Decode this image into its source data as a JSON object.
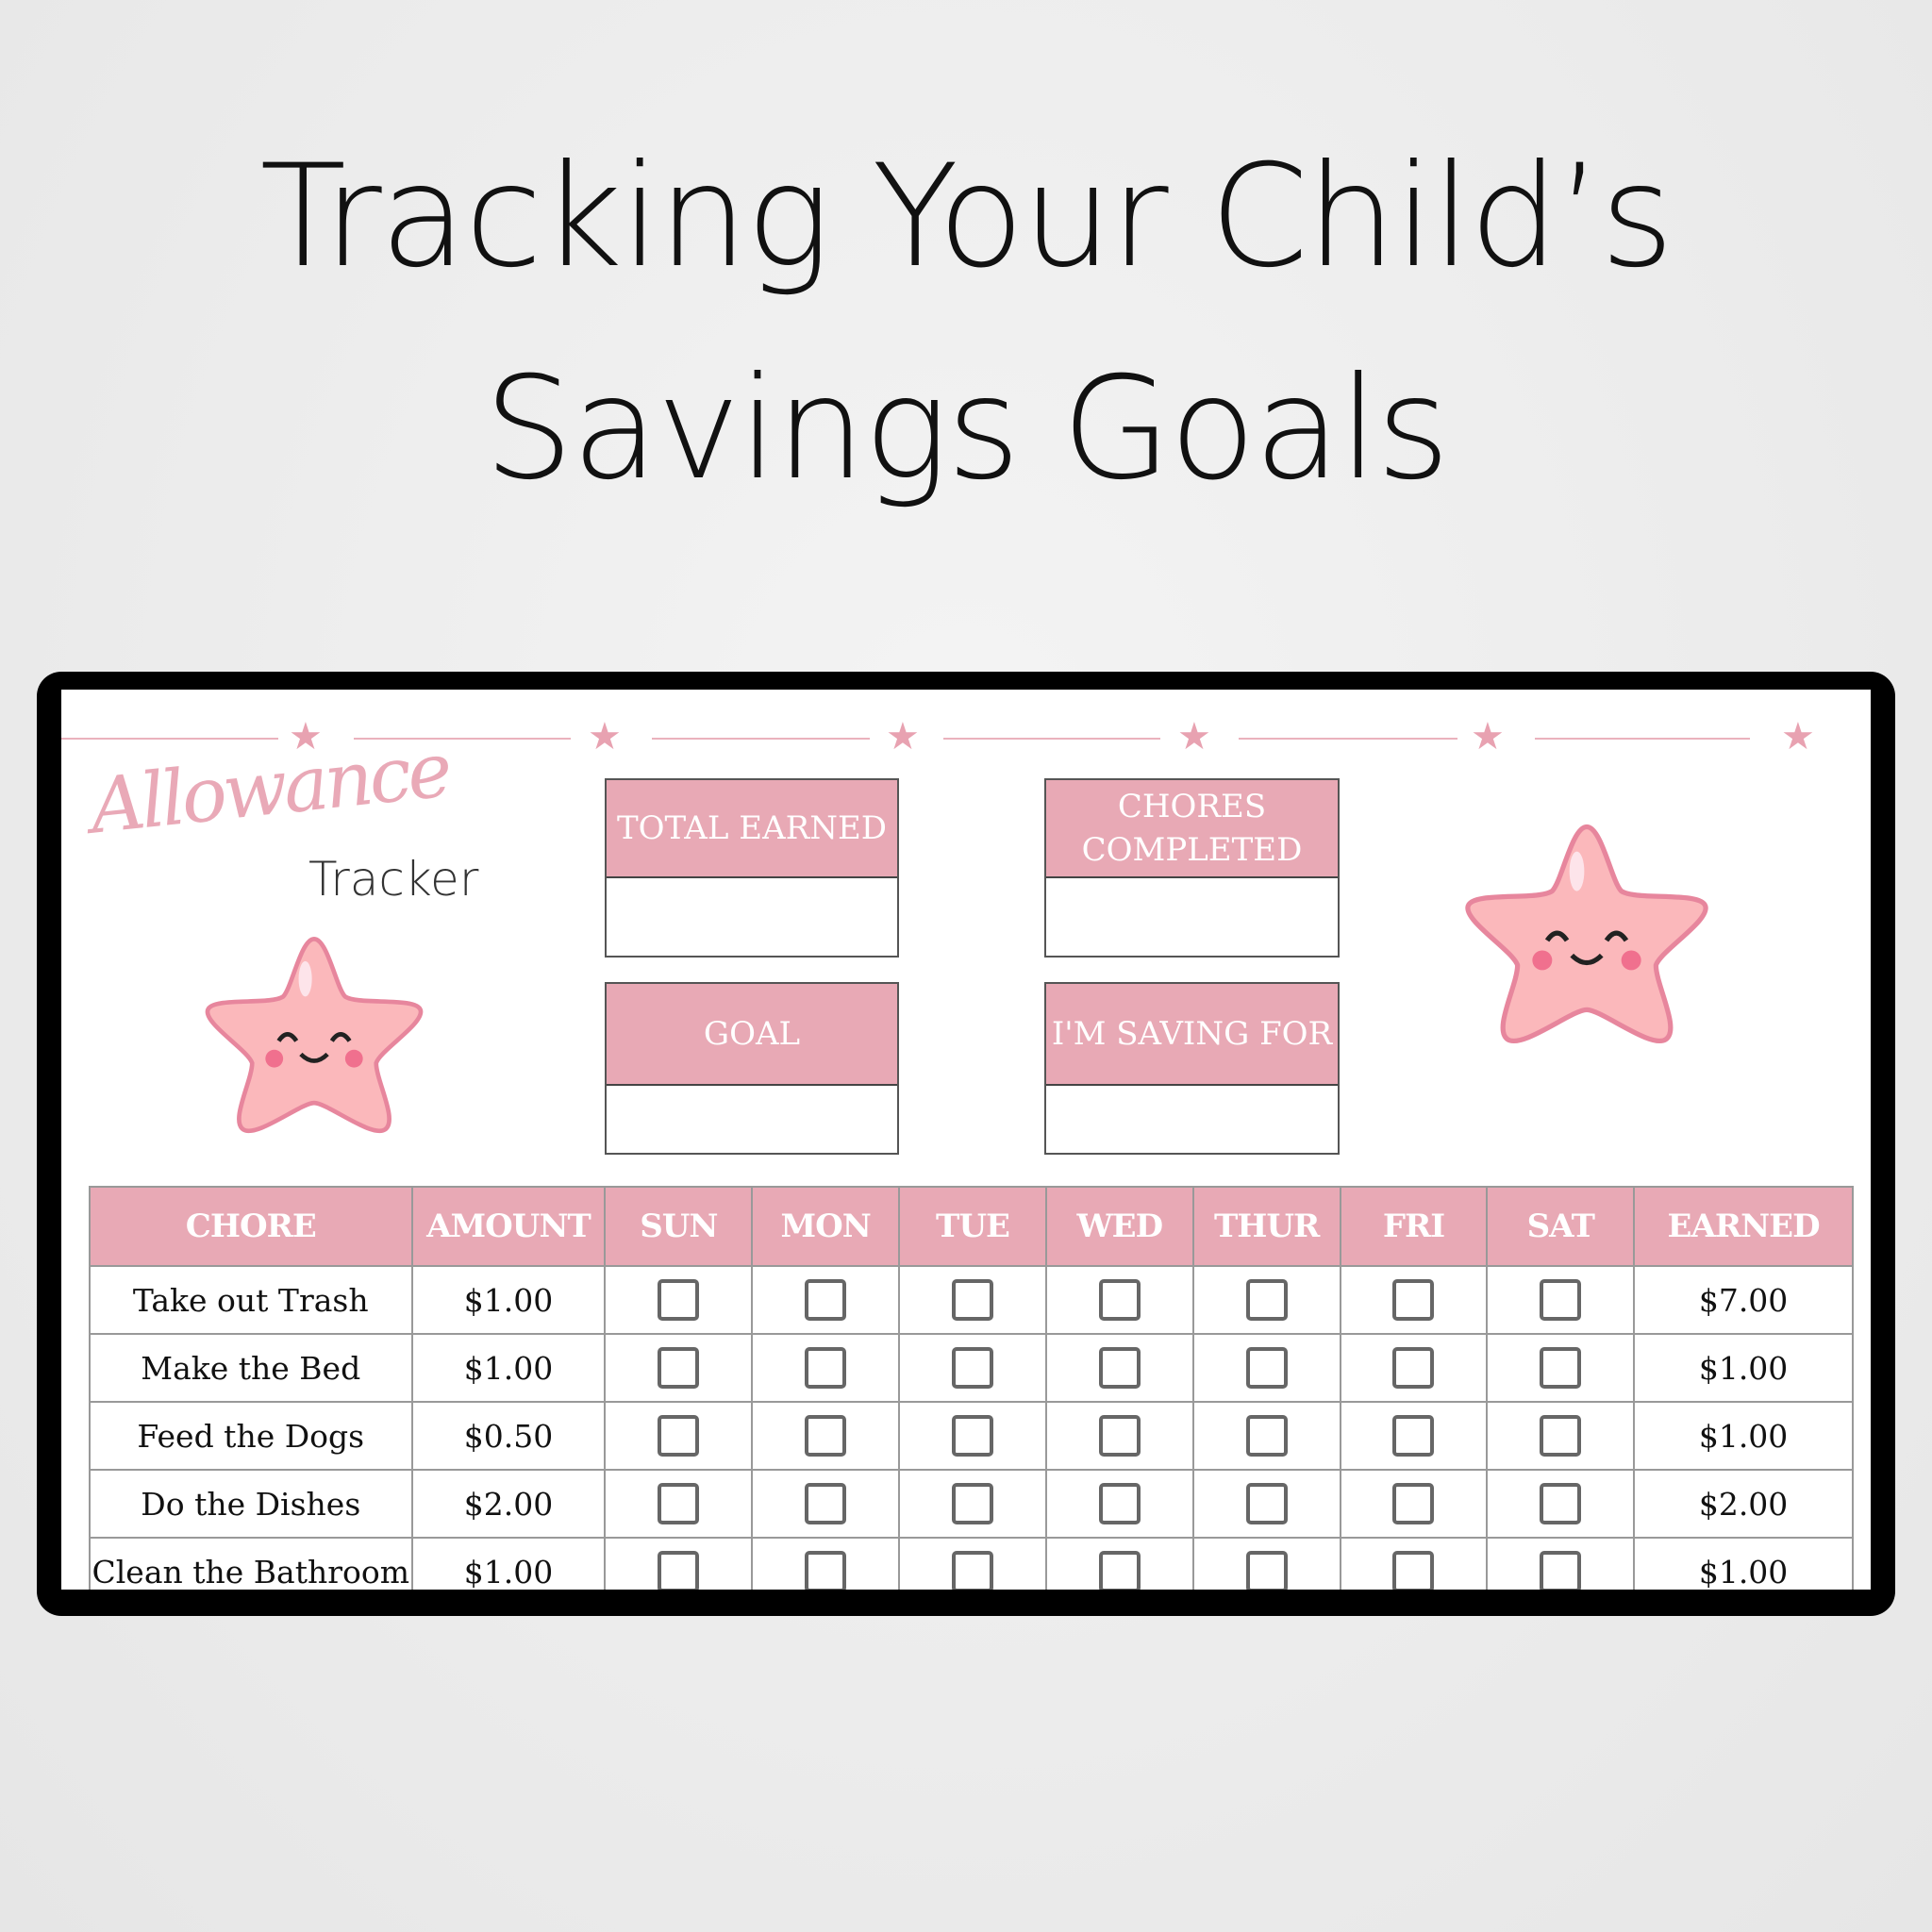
{
  "title": {
    "line1": "Tracking Your Child’s",
    "line2": "Savings Goals"
  },
  "logo": {
    "script": "Allowance",
    "word": "Tracker"
  },
  "boxes": {
    "total_earned": "TOTAL EARNED",
    "chores_completed": "CHORES COMPLETED",
    "goal": "GOAL",
    "saving_for": "I'M SAVING FOR"
  },
  "colors": {
    "accent": "#e8a9b5"
  },
  "table": {
    "headers": [
      "CHORE",
      "AMOUNT",
      "SUN",
      "MON",
      "TUE",
      "WED",
      "THUR",
      "FRI",
      "SAT",
      "EARNED"
    ],
    "rows": [
      {
        "chore": "Take out Trash",
        "amount": "$1.00",
        "earned": "$7.00"
      },
      {
        "chore": "Make the Bed",
        "amount": "$1.00",
        "earned": "$1.00"
      },
      {
        "chore": "Feed the Dogs",
        "amount": "$0.50",
        "earned": "$1.00"
      },
      {
        "chore": "Do the Dishes",
        "amount": "$2.00",
        "earned": "$2.00"
      },
      {
        "chore": "Clean the Bathroom",
        "amount": "$1.00",
        "earned": "$1.00"
      }
    ]
  }
}
